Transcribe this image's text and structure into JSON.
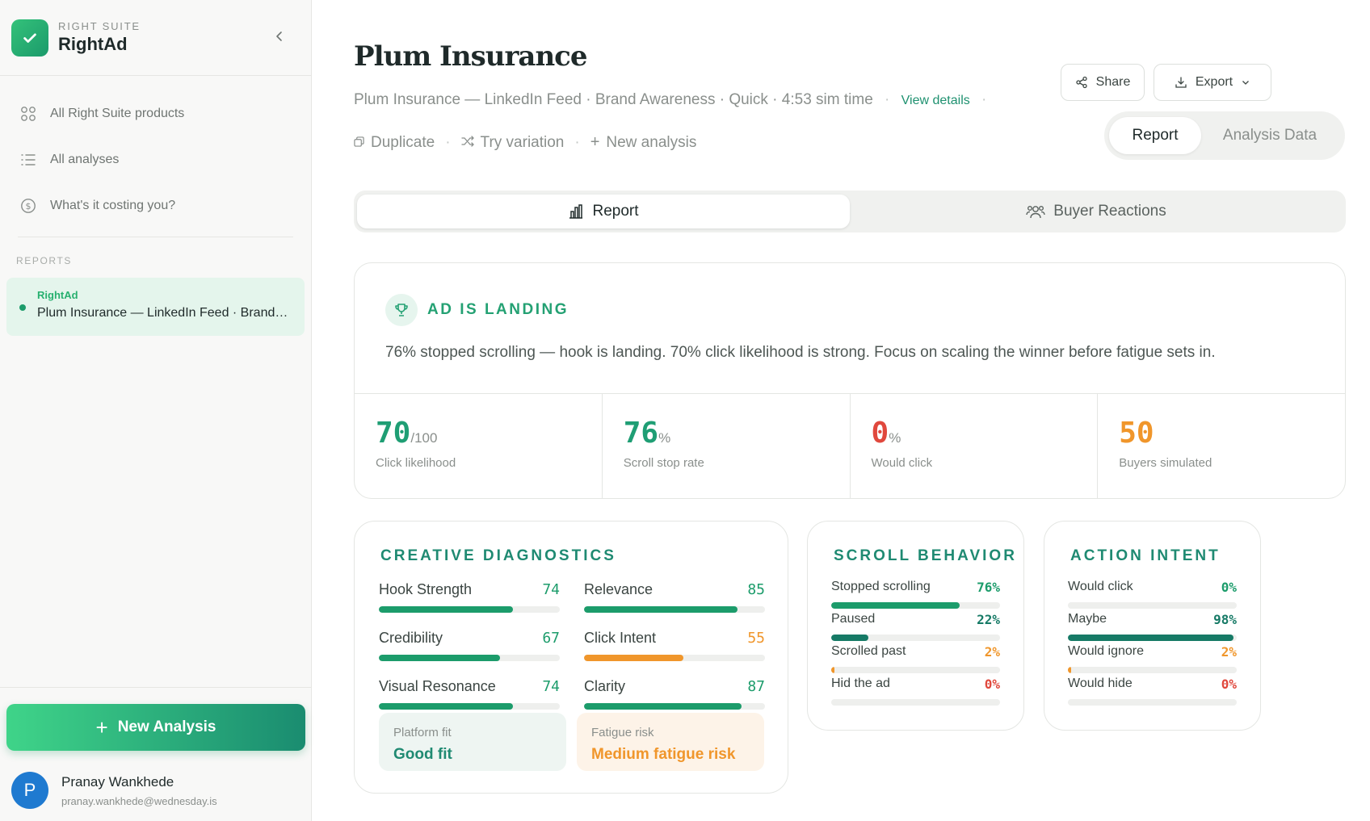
{
  "brand": {
    "suite": "RIGHT SUITE",
    "name": "RightAd"
  },
  "nav": [
    {
      "label": "All Right Suite products",
      "icon": "grid-icon"
    },
    {
      "label": "All analyses",
      "icon": "list-icon"
    },
    {
      "label": "What's it costing you?",
      "icon": "dollar-icon"
    }
  ],
  "reports_label": "REPORTS",
  "report_item": {
    "tag": "RightAd",
    "title": "Plum Insurance — LinkedIn Feed · Brand Awareness"
  },
  "new_analysis": "New Analysis",
  "user": {
    "initial": "P",
    "name": "Pranay Wankhede",
    "email": "pranay.wankhede@wednesday.is"
  },
  "header": {
    "title": "Plum Insurance",
    "meta": "Plum Insurance — LinkedIn Feed · Brand Awareness · Quick · 4:53 sim time",
    "view_details": "View details",
    "actions": {
      "duplicate": "Duplicate",
      "variation": "Try variation",
      "new": "New analysis"
    },
    "share": "Share",
    "export": "Export",
    "seg": {
      "report": "Report",
      "analysis": "Analysis Data"
    }
  },
  "tabs": {
    "report": "Report",
    "buyers": "Buyer Reactions"
  },
  "verdict": {
    "title": "AD IS LANDING",
    "desc": "76% stopped scrolling — hook is landing. 70% click likelihood is strong. Focus on scaling the winner before fatigue sets in."
  },
  "stats": [
    {
      "value": "70",
      "unit": "/100",
      "label": "Click likelihood",
      "color": "#1f9e74"
    },
    {
      "value": "76",
      "unit": "%",
      "label": "Scroll stop rate",
      "color": "#1f9e74"
    },
    {
      "value": "0",
      "unit": "%",
      "label": "Would click",
      "color": "#e0483d"
    },
    {
      "value": "50",
      "unit": "",
      "label": "Buyers simulated",
      "color": "#f0962b"
    }
  ],
  "diagnostics": {
    "title": "CREATIVE DIAGNOSTICS",
    "items": [
      {
        "label": "Hook Strength",
        "value": 74,
        "color": "#1c9c6b"
      },
      {
        "label": "Relevance",
        "value": 85,
        "color": "#1c9c6b"
      },
      {
        "label": "Credibility",
        "value": 67,
        "color": "#1c9c6b"
      },
      {
        "label": "Click Intent",
        "value": 55,
        "color": "#f0962b"
      },
      {
        "label": "Visual Resonance",
        "value": 74,
        "color": "#1c9c6b"
      },
      {
        "label": "Clarity",
        "value": 87,
        "color": "#1c9c6b"
      }
    ],
    "platform_fit": {
      "label": "Platform fit",
      "value": "Good fit"
    },
    "fatigue_risk": {
      "label": "Fatigue risk",
      "value": "Medium fatigue risk"
    }
  },
  "scroll": {
    "title": "SCROLL BEHAVIOR",
    "items": [
      {
        "label": "Stopped scrolling",
        "value": "76%",
        "pct": 76,
        "color": "#1c9c6b"
      },
      {
        "label": "Paused",
        "value": "22%",
        "pct": 22,
        "color": "#167a66"
      },
      {
        "label": "Scrolled past",
        "value": "2%",
        "pct": 2,
        "color": "#f0962b"
      },
      {
        "label": "Hid the ad",
        "value": "0%",
        "pct": 0,
        "color": "#e0483d"
      }
    ]
  },
  "intent": {
    "title": "ACTION INTENT",
    "items": [
      {
        "label": "Would click",
        "value": "0%",
        "pct": 0,
        "color": "#1c9c6b"
      },
      {
        "label": "Maybe",
        "value": "98%",
        "pct": 98,
        "color": "#167a66"
      },
      {
        "label": "Would ignore",
        "value": "2%",
        "pct": 2,
        "color": "#f0962b"
      },
      {
        "label": "Would hide",
        "value": "0%",
        "pct": 0,
        "color": "#e0483d"
      }
    ]
  }
}
